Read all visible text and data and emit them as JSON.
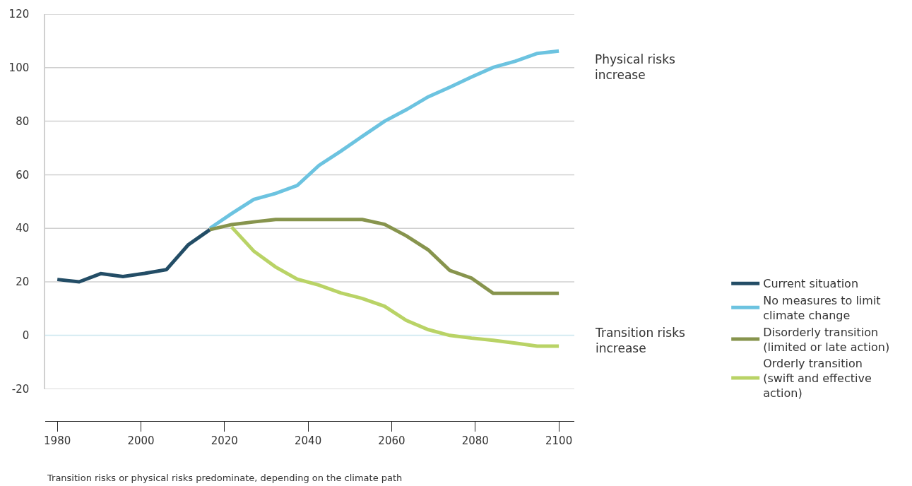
{
  "chart_data": {
    "type": "line",
    "annotations": [
      "Physical risks increase",
      "Transition risks increase",
      "Transition risks or physical risks predominate, depending on the climate path"
    ],
    "series": [
      {
        "name": "Current situation",
        "color": "#234d66",
        "x": [
          1980,
          1985.2,
          1990.4,
          1995.7,
          2000.9,
          2006.1,
          2011.3,
          2016.5
        ],
        "values": [
          20.9,
          20,
          23.1,
          22,
          23.2,
          24.6,
          33.8,
          39.5
        ]
      },
      {
        "name": "No measures to limit climate change",
        "color": "#6cc3e0",
        "x": [
          2016.5,
          2021.7,
          2027.0,
          2032.2,
          2037.4,
          2042.6,
          2047.8,
          2053.0,
          2058.3,
          2063.5,
          2068.7,
          2073.9,
          2079.1,
          2084.3,
          2089.6,
          2094.8,
          2100
        ],
        "values": [
          40,
          45.5,
          50.8,
          53,
          56,
          63.5,
          68.8,
          74.4,
          80,
          84.3,
          89.1,
          92.7,
          96.5,
          100.1,
          102.4,
          105.3,
          106.2
        ]
      },
      {
        "name": "Disorderly transition (limited or late action)",
        "color": "#87944d",
        "x": [
          2016.5,
          2021.7,
          2027.0,
          2032.2,
          2037.4,
          2042.6,
          2047.8,
          2053.0,
          2058.3,
          2063.5,
          2068.7,
          2073.9,
          2079.1,
          2084.3,
          2089.6,
          2094.8,
          2100
        ],
        "values": [
          39.5,
          41.4,
          42.4,
          43.3,
          43.3,
          43.3,
          43.3,
          43.3,
          41.5,
          37.2,
          32,
          24.3,
          21.4,
          15.7,
          15.7,
          15.7,
          15.7
        ]
      },
      {
        "name": "Orderly transition (swift and effective action)",
        "color": "#b9d366",
        "x": [
          2021.7,
          2027.0,
          2032.2,
          2037.4,
          2042.6,
          2047.8,
          2053.0,
          2058.3,
          2063.5,
          2068.7,
          2073.9,
          2079.1,
          2084.3,
          2089.6,
          2094.8,
          2100
        ],
        "values": [
          40.5,
          31.5,
          25.6,
          21,
          18.8,
          15.9,
          13.8,
          10.9,
          5.6,
          2.2,
          0,
          -1,
          -1.8,
          -2.9,
          -4,
          -4
        ]
      }
    ],
    "xlim": [
      1977.1,
      2103.7
    ],
    "xticks": [
      1980,
      2000,
      2020,
      2040,
      2060,
      2080,
      2100
    ],
    "ylim": [
      -20,
      120
    ],
    "yticks": [
      -20,
      0,
      20,
      40,
      60,
      80,
      100,
      120
    ],
    "ref_lines": [
      {
        "axis": "y",
        "value": 0,
        "color": "#d4ebf2"
      }
    ],
    "grid": "y",
    "legend": "right",
    "marker": "none",
    "line_style": "solid"
  }
}
